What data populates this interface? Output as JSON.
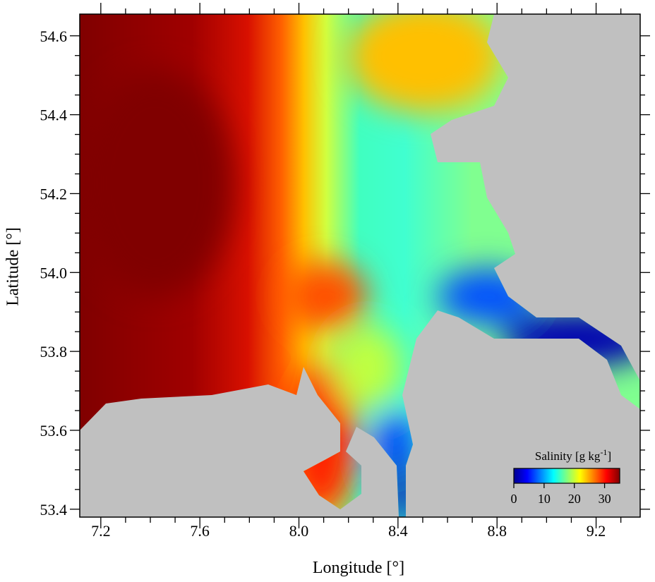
{
  "map": {
    "xlabel": "Longitude [°]",
    "ylabel": "Latitude [°]",
    "xlim": [
      7.115,
      9.378
    ],
    "ylim": [
      53.38,
      54.655
    ],
    "xticks": [
      7.2,
      7.6,
      {
        "value": 8,
        "label": "8.0"
      },
      8.4,
      8.8,
      9.2
    ],
    "yticks": [
      53.4,
      53.6,
      53.8,
      {
        "value": 54,
        "label": "54.0"
      },
      54.2,
      54.4,
      54.6
    ],
    "xminorticks": [
      7.3,
      7.4,
      7.5,
      7.7,
      7.8,
      7.9,
      8.1,
      8.2,
      8.3,
      8.5,
      8.6,
      8.7,
      8.9,
      9.0,
      9.1,
      9.3
    ],
    "yminorticks": [
      53.45,
      53.5,
      53.55,
      53.65,
      53.7,
      53.75,
      53.85,
      53.9,
      53.95,
      54.05,
      54.1,
      54.15,
      54.25,
      54.3,
      54.35,
      54.45,
      54.5,
      54.55
    ],
    "colorbar": {
      "label": "Salinity [g kg",
      "label_superscript": "-1",
      "label_end": "]",
      "lim": [
        0,
        35
      ],
      "ticks": [
        0,
        10,
        20,
        30
      ],
      "colors": [
        "#00008f",
        "#0000ff",
        "#0080ff",
        "#00ffff",
        "#80ff80",
        "#ffff00",
        "#ff8000",
        "#ff0000",
        "#800000"
      ]
    }
  }
}
